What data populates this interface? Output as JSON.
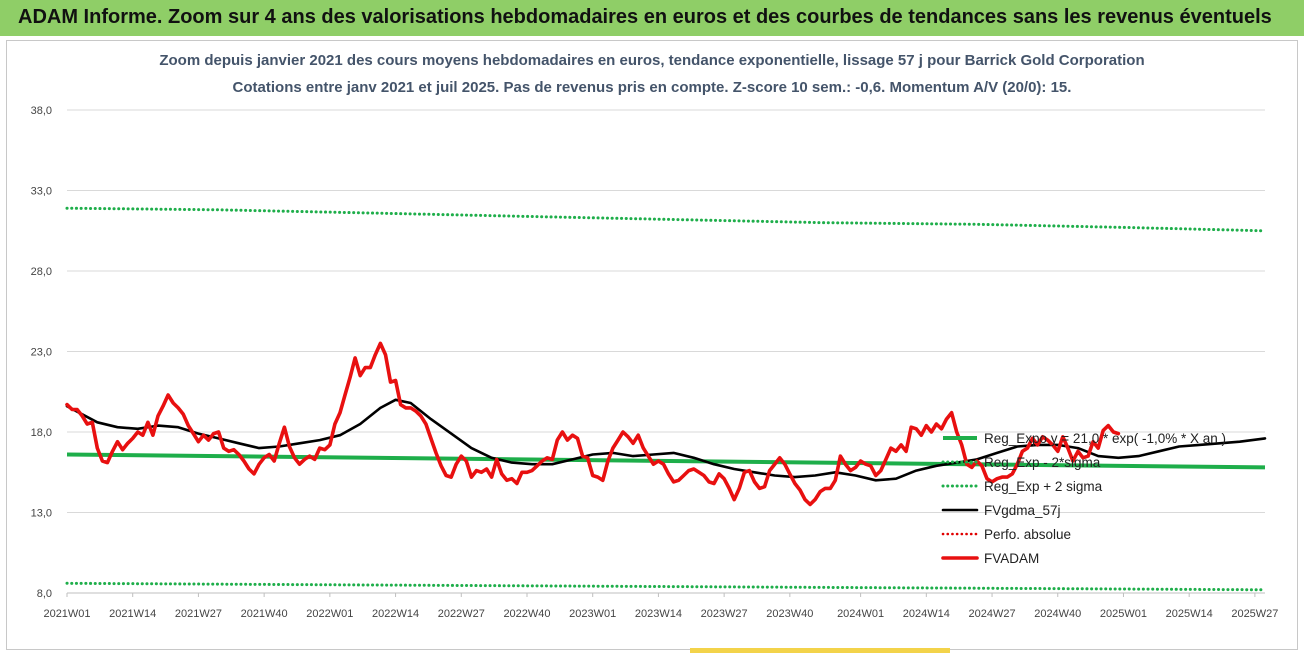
{
  "banner": {
    "title": "ADAM Informe. Zoom sur 4 ans des valorisations hebdomadaires en euros et des courbes de tendances sans les revenus éventuels"
  },
  "colors": {
    "banner_bg": "#8fce67",
    "reg_exp": "#1eae4a",
    "sigma_bands": "#1eae4a",
    "fvgdma": "#000000",
    "perfo": "#e00000",
    "fvadam": "#e81010"
  },
  "chart_data": {
    "type": "line",
    "title": "Zoom depuis janvier 2021 des cours moyens hebdomadaires en euros, tendance exponentielle, lissage 57 j pour Barrick Gold Corporation",
    "subtitle": "Cotations entre janv 2021 et juil 2025. Pas de revenus pris en compte. Z-score 10 sem.: -0,6. Momentum A/V (20/0): 15.",
    "xlabel": "",
    "ylabel": "",
    "ylim": [
      8,
      38
    ],
    "y_ticks": [
      "8,0",
      "13,0",
      "18,0",
      "23,0",
      "28,0",
      "33,0",
      "38,0"
    ],
    "x_range": [
      0,
      237
    ],
    "x_ticks": [
      {
        "label": "2021W01",
        "week": 0
      },
      {
        "label": "2021W14",
        "week": 13
      },
      {
        "label": "2021W27",
        "week": 26
      },
      {
        "label": "2021W40",
        "week": 39
      },
      {
        "label": "2022W01",
        "week": 52
      },
      {
        "label": "2022W14",
        "week": 65
      },
      {
        "label": "2022W27",
        "week": 78
      },
      {
        "label": "2022W40",
        "week": 91
      },
      {
        "label": "2023W01",
        "week": 104
      },
      {
        "label": "2023W14",
        "week": 117
      },
      {
        "label": "2023W27",
        "week": 130
      },
      {
        "label": "2023W40",
        "week": 143
      },
      {
        "label": "2024W01",
        "week": 157
      },
      {
        "label": "2024W14",
        "week": 170
      },
      {
        "label": "2024W27",
        "week": 183
      },
      {
        "label": "2024W40",
        "week": 196
      },
      {
        "label": "2025W01",
        "week": 209
      },
      {
        "label": "2025W14",
        "week": 222
      },
      {
        "label": "2025W27",
        "week": 235
      }
    ],
    "grid": "horizontal",
    "legend_position": "right",
    "series": [
      {
        "name": "Reg_Expo y = 21,0 * exp( -1,0% * X an )",
        "style": "solid-thick",
        "points": [
          [
            0,
            16.6
          ],
          [
            237,
            15.8
          ]
        ]
      },
      {
        "name": "Reg_Exp - 2*sigma",
        "style": "dotted",
        "points": [
          [
            0,
            8.6
          ],
          [
            60,
            8.5
          ],
          [
            120,
            8.4
          ],
          [
            180,
            8.3
          ],
          [
            237,
            8.2
          ]
        ]
      },
      {
        "name": "Reg_Exp + 2 sigma",
        "style": "dotted",
        "points": [
          [
            0,
            31.9
          ],
          [
            30,
            31.8
          ],
          [
            60,
            31.6
          ],
          [
            90,
            31.4
          ],
          [
            120,
            31.2
          ],
          [
            150,
            31.0
          ],
          [
            180,
            30.9
          ],
          [
            210,
            30.7
          ],
          [
            237,
            30.5
          ]
        ]
      },
      {
        "name": "FVgdma_57j",
        "style": "solid",
        "points": [
          [
            0,
            19.6
          ],
          [
            3,
            19.1
          ],
          [
            6,
            18.6
          ],
          [
            10,
            18.3
          ],
          [
            14,
            18.2
          ],
          [
            18,
            18.4
          ],
          [
            22,
            18.3
          ],
          [
            26,
            17.9
          ],
          [
            30,
            17.6
          ],
          [
            34,
            17.3
          ],
          [
            38,
            17.0
          ],
          [
            42,
            17.1
          ],
          [
            46,
            17.3
          ],
          [
            50,
            17.5
          ],
          [
            54,
            17.8
          ],
          [
            58,
            18.5
          ],
          [
            62,
            19.5
          ],
          [
            65,
            20.0
          ],
          [
            68,
            19.8
          ],
          [
            72,
            18.8
          ],
          [
            76,
            17.9
          ],
          [
            80,
            17.0
          ],
          [
            84,
            16.4
          ],
          [
            88,
            16.1
          ],
          [
            92,
            16.0
          ],
          [
            96,
            16.0
          ],
          [
            100,
            16.3
          ],
          [
            104,
            16.6
          ],
          [
            108,
            16.7
          ],
          [
            112,
            16.5
          ],
          [
            116,
            16.6
          ],
          [
            120,
            16.7
          ],
          [
            124,
            16.4
          ],
          [
            128,
            16.0
          ],
          [
            132,
            15.7
          ],
          [
            136,
            15.5
          ],
          [
            140,
            15.3
          ],
          [
            144,
            15.2
          ],
          [
            148,
            15.3
          ],
          [
            152,
            15.5
          ],
          [
            156,
            15.3
          ],
          [
            160,
            15.0
          ],
          [
            164,
            15.1
          ],
          [
            168,
            15.6
          ],
          [
            172,
            15.9
          ],
          [
            176,
            16.1
          ],
          [
            180,
            16.3
          ],
          [
            184,
            16.7
          ],
          [
            188,
            17.1
          ],
          [
            192,
            17.2
          ],
          [
            196,
            17.2
          ],
          [
            200,
            17.0
          ],
          [
            204,
            16.5
          ],
          [
            208,
            16.4
          ],
          [
            212,
            16.5
          ],
          [
            216,
            16.8
          ],
          [
            220,
            17.1
          ],
          [
            224,
            17.2
          ],
          [
            228,
            17.3
          ],
          [
            232,
            17.4
          ],
          [
            237,
            17.6
          ]
        ]
      },
      {
        "name": "Perfo. absolue",
        "style": "dotted",
        "points": []
      },
      {
        "name": "FVADAM",
        "style": "solid-thick",
        "points": [
          [
            0,
            19.7
          ],
          [
            1,
            19.4
          ],
          [
            2,
            19.4
          ],
          [
            3,
            19.0
          ],
          [
            4,
            18.5
          ],
          [
            5,
            18.6
          ],
          [
            6,
            17.0
          ],
          [
            7,
            16.2
          ],
          [
            8,
            16.1
          ],
          [
            9,
            16.8
          ],
          [
            10,
            17.4
          ],
          [
            11,
            16.9
          ],
          [
            12,
            17.3
          ],
          [
            13,
            17.6
          ],
          [
            14,
            18.0
          ],
          [
            15,
            17.8
          ],
          [
            16,
            18.6
          ],
          [
            17,
            17.8
          ],
          [
            18,
            19.0
          ],
          [
            19,
            19.6
          ],
          [
            20,
            20.3
          ],
          [
            21,
            19.8
          ],
          [
            22,
            19.5
          ],
          [
            23,
            19.1
          ],
          [
            24,
            18.4
          ],
          [
            25,
            17.9
          ],
          [
            26,
            17.4
          ],
          [
            27,
            17.8
          ],
          [
            28,
            17.5
          ],
          [
            29,
            17.9
          ],
          [
            30,
            18.0
          ],
          [
            31,
            17.0
          ],
          [
            32,
            16.8
          ],
          [
            33,
            16.9
          ],
          [
            34,
            16.6
          ],
          [
            35,
            16.2
          ],
          [
            36,
            15.7
          ],
          [
            37,
            15.4
          ],
          [
            38,
            16.0
          ],
          [
            39,
            16.4
          ],
          [
            40,
            16.6
          ],
          [
            41,
            16.2
          ],
          [
            42,
            17.3
          ],
          [
            43,
            18.3
          ],
          [
            44,
            17.1
          ],
          [
            45,
            16.4
          ],
          [
            46,
            16.0
          ],
          [
            47,
            16.3
          ],
          [
            48,
            16.5
          ],
          [
            49,
            16.3
          ],
          [
            50,
            17.0
          ],
          [
            51,
            16.9
          ],
          [
            52,
            17.2
          ],
          [
            53,
            18.5
          ],
          [
            54,
            19.2
          ],
          [
            55,
            20.3
          ],
          [
            56,
            21.4
          ],
          [
            57,
            22.6
          ],
          [
            58,
            21.5
          ],
          [
            59,
            22.0
          ],
          [
            60,
            22.0
          ],
          [
            61,
            22.8
          ],
          [
            62,
            23.5
          ],
          [
            63,
            22.8
          ],
          [
            64,
            21.1
          ],
          [
            65,
            21.2
          ],
          [
            66,
            19.7
          ],
          [
            67,
            19.5
          ],
          [
            68,
            19.5
          ],
          [
            69,
            19.3
          ],
          [
            70,
            19.0
          ],
          [
            71,
            18.5
          ],
          [
            72,
            17.6
          ],
          [
            73,
            16.7
          ],
          [
            74,
            15.9
          ],
          [
            75,
            15.3
          ],
          [
            76,
            15.2
          ],
          [
            77,
            16.0
          ],
          [
            78,
            16.5
          ],
          [
            79,
            16.2
          ],
          [
            80,
            15.2
          ],
          [
            81,
            15.6
          ],
          [
            82,
            15.5
          ],
          [
            83,
            15.7
          ],
          [
            84,
            15.2
          ],
          [
            85,
            16.3
          ],
          [
            86,
            15.4
          ],
          [
            87,
            15.0
          ],
          [
            88,
            15.1
          ],
          [
            89,
            14.8
          ],
          [
            90,
            15.5
          ],
          [
            91,
            15.5
          ],
          [
            92,
            15.6
          ],
          [
            93,
            15.9
          ],
          [
            94,
            16.2
          ],
          [
            95,
            16.4
          ],
          [
            96,
            16.3
          ],
          [
            97,
            17.5
          ],
          [
            98,
            18.0
          ],
          [
            99,
            17.5
          ],
          [
            100,
            17.8
          ],
          [
            101,
            17.6
          ],
          [
            102,
            16.5
          ],
          [
            103,
            16.4
          ],
          [
            104,
            15.3
          ],
          [
            105,
            15.2
          ],
          [
            106,
            15.0
          ],
          [
            107,
            16.2
          ],
          [
            108,
            17.0
          ],
          [
            109,
            17.5
          ],
          [
            110,
            18.0
          ],
          [
            111,
            17.7
          ],
          [
            112,
            17.3
          ],
          [
            113,
            17.8
          ],
          [
            114,
            17.0
          ],
          [
            115,
            16.5
          ],
          [
            116,
            16.0
          ],
          [
            117,
            16.2
          ],
          [
            118,
            16.0
          ],
          [
            119,
            15.4
          ],
          [
            120,
            14.9
          ],
          [
            121,
            15.0
          ],
          [
            122,
            15.3
          ],
          [
            123,
            15.6
          ],
          [
            124,
            15.7
          ],
          [
            125,
            15.5
          ],
          [
            126,
            15.3
          ],
          [
            127,
            14.9
          ],
          [
            128,
            14.8
          ],
          [
            129,
            15.4
          ],
          [
            130,
            15.1
          ],
          [
            131,
            14.5
          ],
          [
            132,
            13.8
          ],
          [
            133,
            14.5
          ],
          [
            134,
            15.5
          ],
          [
            135,
            15.6
          ],
          [
            136,
            14.9
          ],
          [
            137,
            14.5
          ],
          [
            138,
            14.6
          ],
          [
            139,
            15.6
          ],
          [
            140,
            16.0
          ],
          [
            141,
            16.4
          ],
          [
            142,
            16.0
          ],
          [
            143,
            15.4
          ],
          [
            144,
            14.8
          ],
          [
            145,
            14.4
          ],
          [
            146,
            13.8
          ],
          [
            147,
            13.5
          ],
          [
            148,
            13.8
          ],
          [
            149,
            14.3
          ],
          [
            150,
            14.5
          ],
          [
            151,
            14.5
          ],
          [
            152,
            15.0
          ],
          [
            153,
            16.5
          ],
          [
            154,
            16.0
          ],
          [
            155,
            15.6
          ],
          [
            156,
            15.8
          ],
          [
            157,
            16.2
          ],
          [
            158,
            16.0
          ],
          [
            159,
            15.9
          ],
          [
            160,
            15.3
          ],
          [
            161,
            15.6
          ],
          [
            162,
            16.3
          ],
          [
            163,
            17.0
          ],
          [
            164,
            16.8
          ],
          [
            165,
            17.2
          ],
          [
            166,
            16.8
          ],
          [
            167,
            18.3
          ],
          [
            168,
            18.2
          ],
          [
            169,
            17.8
          ],
          [
            170,
            18.4
          ],
          [
            171,
            18.0
          ],
          [
            172,
            18.5
          ],
          [
            173,
            18.2
          ],
          [
            174,
            18.8
          ],
          [
            175,
            19.2
          ],
          [
            176,
            18.0
          ],
          [
            177,
            17.2
          ],
          [
            178,
            16.0
          ],
          [
            179,
            15.8
          ],
          [
            180,
            16.2
          ],
          [
            181,
            15.9
          ],
          [
            182,
            15.1
          ],
          [
            183,
            14.9
          ],
          [
            184,
            15.1
          ],
          [
            185,
            15.2
          ],
          [
            186,
            15.2
          ],
          [
            187,
            15.4
          ],
          [
            188,
            16.0
          ],
          [
            189,
            16.8
          ],
          [
            190,
            17.0
          ],
          [
            191,
            17.6
          ],
          [
            192,
            17.2
          ],
          [
            193,
            17.7
          ],
          [
            194,
            17.5
          ],
          [
            195,
            17.2
          ],
          [
            196,
            16.8
          ],
          [
            197,
            17.7
          ],
          [
            198,
            17.0
          ],
          [
            199,
            16.2
          ],
          [
            200,
            16.8
          ],
          [
            201,
            16.4
          ],
          [
            202,
            16.5
          ],
          [
            203,
            17.4
          ],
          [
            204,
            17.0
          ],
          [
            205,
            18.1
          ],
          [
            206,
            18.4
          ],
          [
            207,
            18.0
          ],
          [
            208,
            17.9
          ]
        ]
      }
    ]
  }
}
